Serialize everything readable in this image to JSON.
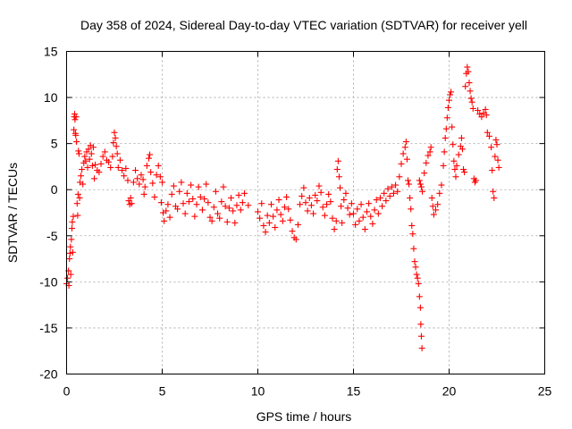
{
  "chart_data": {
    "type": "scatter",
    "title": "Day 358 of 2024, Sidereal Day-to-day VTEC variation (SDTVAR) for receiver yell",
    "xlabel": "GPS time / hours",
    "ylabel": "SDTVAR / TECUs",
    "xlim": [
      0,
      25
    ],
    "ylim": [
      -20,
      15
    ],
    "xticks": [
      0,
      5,
      10,
      15,
      20,
      25
    ],
    "yticks": [
      -20,
      -15,
      -10,
      -5,
      0,
      5,
      10,
      15
    ],
    "xtick_labels": [
      "0",
      "5",
      "10",
      "15",
      "20",
      "25"
    ],
    "ytick_labels": [
      "-20",
      "-15",
      "-10",
      "-5",
      "0",
      "5",
      "10",
      "15"
    ],
    "grid": true,
    "marker": "+",
    "color": "#ff0000",
    "series": [
      {
        "name": "SDTVAR",
        "points": [
          [
            0.0,
            -10.2
          ],
          [
            0.05,
            -9.6
          ],
          [
            0.1,
            -8.8
          ],
          [
            0.12,
            -10.4
          ],
          [
            0.15,
            -7.5
          ],
          [
            0.18,
            -6.9
          ],
          [
            0.2,
            -6.2
          ],
          [
            0.22,
            -9.2
          ],
          [
            0.25,
            -5.4
          ],
          [
            0.28,
            -4.2
          ],
          [
            0.3,
            -3.5
          ],
          [
            0.32,
            -6.8
          ],
          [
            0.35,
            -2.9
          ],
          [
            0.38,
            6.5
          ],
          [
            0.4,
            7.9
          ],
          [
            0.42,
            8.2
          ],
          [
            0.44,
            7.6
          ],
          [
            0.46,
            6.1
          ],
          [
            0.48,
            5.9
          ],
          [
            0.5,
            7.9
          ],
          [
            0.52,
            5.2
          ],
          [
            0.55,
            -1.5
          ],
          [
            0.58,
            -2.8
          ],
          [
            0.6,
            -0.5
          ],
          [
            0.62,
            4.2
          ],
          [
            0.65,
            3.9
          ],
          [
            0.68,
            -0.9
          ],
          [
            0.7,
            0.8
          ],
          [
            0.75,
            1.5
          ],
          [
            0.8,
            2.2
          ],
          [
            0.85,
            0.6
          ],
          [
            0.9,
            2.9
          ],
          [
            0.95,
            3.6
          ],
          [
            1.0,
            3.1
          ],
          [
            1.05,
            4.1
          ],
          [
            1.1,
            2.4
          ],
          [
            1.15,
            4.4
          ],
          [
            1.2,
            3.3
          ],
          [
            1.25,
            4.8
          ],
          [
            1.3,
            3.9
          ],
          [
            1.35,
            2.6
          ],
          [
            1.4,
            4.6
          ],
          [
            1.45,
            1.2
          ],
          [
            1.5,
            2.7
          ],
          [
            1.6,
            2.1
          ],
          [
            1.7,
            1.9
          ],
          [
            1.8,
            2.8
          ],
          [
            1.9,
            3.6
          ],
          [
            2.0,
            4.1
          ],
          [
            2.1,
            3.2
          ],
          [
            2.2,
            3.0
          ],
          [
            2.3,
            2.4
          ],
          [
            2.4,
            3.6
          ],
          [
            2.45,
            5.1
          ],
          [
            2.5,
            6.2
          ],
          [
            2.55,
            5.6
          ],
          [
            2.6,
            4.7
          ],
          [
            2.65,
            3.9
          ],
          [
            2.7,
            2.4
          ],
          [
            2.8,
            3.2
          ],
          [
            2.9,
            2.1
          ],
          [
            3.0,
            1.5
          ],
          [
            3.1,
            2.3
          ],
          [
            3.2,
            1.0
          ],
          [
            3.25,
            -1.2
          ],
          [
            3.3,
            -1.6
          ],
          [
            3.35,
            -0.9
          ],
          [
            3.4,
            -1.5
          ],
          [
            3.5,
            0.8
          ],
          [
            3.6,
            2.1
          ],
          [
            3.7,
            1.2
          ],
          [
            3.8,
            0.6
          ],
          [
            3.9,
            1.6
          ],
          [
            4.0,
            1.1
          ],
          [
            4.05,
            -0.5
          ],
          [
            4.1,
            0.3
          ],
          [
            4.2,
            2.6
          ],
          [
            4.3,
            3.4
          ],
          [
            4.35,
            3.8
          ],
          [
            4.4,
            1.9
          ],
          [
            4.5,
            0.7
          ],
          [
            4.6,
            -0.8
          ],
          [
            4.7,
            1.6
          ],
          [
            4.8,
            2.6
          ],
          [
            4.9,
            1.4
          ],
          [
            4.95,
            -1.4
          ],
          [
            5.0,
            0.8
          ],
          [
            5.05,
            -2.5
          ],
          [
            5.1,
            -3.4
          ],
          [
            5.2,
            -2.3
          ],
          [
            5.3,
            -1.6
          ],
          [
            5.4,
            -3.0
          ],
          [
            5.5,
            -0.5
          ],
          [
            5.6,
            0.4
          ],
          [
            5.7,
            -1.8
          ],
          [
            5.8,
            -2.1
          ],
          [
            5.9,
            -0.2
          ],
          [
            6.0,
            0.8
          ],
          [
            6.1,
            -1.5
          ],
          [
            6.2,
            -2.6
          ],
          [
            6.3,
            -0.4
          ],
          [
            6.4,
            -1.3
          ],
          [
            6.5,
            0.5
          ],
          [
            6.6,
            -1.0
          ],
          [
            6.7,
            -2.9
          ],
          [
            6.8,
            -1.6
          ],
          [
            6.9,
            0.3
          ],
          [
            7.0,
            -0.8
          ],
          [
            7.1,
            -2.2
          ],
          [
            7.2,
            -1.0
          ],
          [
            7.3,
            0.6
          ],
          [
            7.4,
            -1.4
          ],
          [
            7.5,
            -3.0
          ],
          [
            7.6,
            -3.4
          ],
          [
            7.7,
            -1.9
          ],
          [
            7.8,
            -0.2
          ],
          [
            7.9,
            -2.6
          ],
          [
            8.0,
            -3.1
          ],
          [
            8.1,
            -1.3
          ],
          [
            8.2,
            0.3
          ],
          [
            8.3,
            -1.8
          ],
          [
            8.4,
            -3.5
          ],
          [
            8.5,
            -2.0
          ],
          [
            8.6,
            -0.9
          ],
          [
            8.7,
            -2.3
          ],
          [
            8.8,
            -3.6
          ],
          [
            8.9,
            -1.7
          ],
          [
            9.0,
            -0.6
          ],
          [
            9.1,
            -2.2
          ],
          [
            9.2,
            -1.4
          ],
          [
            9.3,
            -0.4
          ],
          [
            9.5,
            -1.7
          ],
          [
            10.0,
            -2.4
          ],
          [
            10.1,
            -3.1
          ],
          [
            10.2,
            -1.5
          ],
          [
            10.3,
            -3.9
          ],
          [
            10.4,
            -4.6
          ],
          [
            10.5,
            -2.8
          ],
          [
            10.6,
            -3.6
          ],
          [
            10.7,
            -1.6
          ],
          [
            10.8,
            -2.9
          ],
          [
            10.9,
            -4.1
          ],
          [
            11.0,
            -2.2
          ],
          [
            11.1,
            -1.1
          ],
          [
            11.2,
            -2.7
          ],
          [
            11.3,
            -3.4
          ],
          [
            11.4,
            -1.9
          ],
          [
            11.5,
            -0.8
          ],
          [
            11.6,
            -2.1
          ],
          [
            11.7,
            -3.3
          ],
          [
            11.8,
            -4.5
          ],
          [
            11.9,
            -5.2
          ],
          [
            12.0,
            -5.4
          ],
          [
            12.1,
            -3.8
          ],
          [
            12.2,
            -1.6
          ],
          [
            12.3,
            -0.7
          ],
          [
            12.4,
            0.2
          ],
          [
            12.5,
            -1.4
          ],
          [
            12.6,
            -2.3
          ],
          [
            12.7,
            -0.9
          ],
          [
            12.8,
            -1.7
          ],
          [
            12.9,
            -2.6
          ],
          [
            13.0,
            -0.6
          ],
          [
            13.1,
            -1.2
          ],
          [
            13.2,
            0.4
          ],
          [
            13.3,
            -0.3
          ],
          [
            13.4,
            -1.9
          ],
          [
            13.5,
            -2.8
          ],
          [
            13.6,
            -1.6
          ],
          [
            13.7,
            -0.5
          ],
          [
            13.8,
            -1.3
          ],
          [
            13.9,
            -3.1
          ],
          [
            14.0,
            -4.3
          ],
          [
            14.1,
            -3.4
          ],
          [
            14.15,
            2.2
          ],
          [
            14.2,
            3.1
          ],
          [
            14.25,
            1.4
          ],
          [
            14.3,
            0.2
          ],
          [
            14.35,
            -1.8
          ],
          [
            14.4,
            -3.6
          ],
          [
            14.5,
            -1.1
          ],
          [
            14.6,
            -0.4
          ],
          [
            14.7,
            -2.0
          ],
          [
            14.8,
            -2.7
          ],
          [
            14.9,
            -1.5
          ],
          [
            15.0,
            -2.6
          ],
          [
            15.1,
            -3.8
          ],
          [
            15.2,
            -2.1
          ],
          [
            15.3,
            -3.4
          ],
          [
            15.4,
            -1.6
          ],
          [
            15.5,
            -3.0
          ],
          [
            15.6,
            -4.3
          ],
          [
            15.7,
            -2.4
          ],
          [
            15.8,
            -1.5
          ],
          [
            15.9,
            -2.9
          ],
          [
            16.0,
            -3.7
          ],
          [
            16.1,
            -2.2
          ],
          [
            16.2,
            -1.1
          ],
          [
            16.3,
            -2.6
          ],
          [
            16.4,
            -0.9
          ],
          [
            16.5,
            -1.8
          ],
          [
            16.6,
            -0.4
          ],
          [
            16.7,
            -1.2
          ],
          [
            16.8,
            0.1
          ],
          [
            16.9,
            -0.7
          ],
          [
            17.0,
            0.3
          ],
          [
            17.1,
            -0.4
          ],
          [
            17.2,
            0.5
          ],
          [
            17.3,
            -0.2
          ],
          [
            17.4,
            1.4
          ],
          [
            17.5,
            2.8
          ],
          [
            17.6,
            3.9
          ],
          [
            17.7,
            4.6
          ],
          [
            17.75,
            5.2
          ],
          [
            17.8,
            3.3
          ],
          [
            17.85,
            1.0
          ],
          [
            17.9,
            0.6
          ],
          [
            17.95,
            -0.9
          ],
          [
            18.0,
            -2.1
          ],
          [
            18.05,
            -3.9
          ],
          [
            18.1,
            -4.8
          ],
          [
            18.15,
            -6.4
          ],
          [
            18.2,
            -7.8
          ],
          [
            18.25,
            -8.4
          ],
          [
            18.3,
            -9.2
          ],
          [
            18.35,
            -9.6
          ],
          [
            18.4,
            -10.2
          ],
          [
            18.45,
            -11.6
          ],
          [
            18.5,
            -12.8
          ],
          [
            18.52,
            -14.6
          ],
          [
            18.55,
            -15.9
          ],
          [
            18.58,
            -17.2
          ],
          [
            18.45,
            1.0
          ],
          [
            18.5,
            0.6
          ],
          [
            18.55,
            0.3
          ],
          [
            18.6,
            -0.2
          ],
          [
            18.7,
            1.8
          ],
          [
            18.8,
            2.9
          ],
          [
            18.9,
            3.7
          ],
          [
            19.0,
            4.1
          ],
          [
            19.05,
            4.6
          ],
          [
            19.1,
            -0.9
          ],
          [
            19.15,
            -1.8
          ],
          [
            19.2,
            -2.7
          ],
          [
            19.3,
            -2.2
          ],
          [
            19.4,
            -1.6
          ],
          [
            19.5,
            -0.4
          ],
          [
            19.6,
            0.5
          ],
          [
            19.7,
            2.6
          ],
          [
            19.75,
            4.1
          ],
          [
            19.8,
            5.6
          ],
          [
            19.85,
            6.6
          ],
          [
            19.9,
            7.8
          ],
          [
            19.95,
            8.9
          ],
          [
            20.0,
            9.7
          ],
          [
            20.05,
            10.3
          ],
          [
            20.1,
            10.6
          ],
          [
            20.15,
            6.8
          ],
          [
            20.2,
            4.9
          ],
          [
            20.25,
            3.1
          ],
          [
            20.3,
            2.2
          ],
          [
            20.35,
            1.4
          ],
          [
            20.4,
            2.6
          ],
          [
            20.5,
            3.8
          ],
          [
            20.6,
            4.7
          ],
          [
            20.65,
            5.6
          ],
          [
            20.7,
            4.4
          ],
          [
            20.75,
            2.2
          ],
          [
            20.8,
            1.9
          ],
          [
            20.85,
            11.2
          ],
          [
            20.9,
            12.6
          ],
          [
            20.95,
            13.3
          ],
          [
            21.0,
            12.8
          ],
          [
            21.05,
            11.6
          ],
          [
            21.1,
            10.7
          ],
          [
            21.15,
            9.9
          ],
          [
            21.2,
            9.5
          ],
          [
            21.25,
            8.8
          ],
          [
            21.3,
            1.2
          ],
          [
            21.35,
            0.8
          ],
          [
            21.4,
            1.0
          ],
          [
            21.5,
            8.6
          ],
          [
            21.6,
            8.2
          ],
          [
            21.7,
            7.9
          ],
          [
            21.8,
            8.3
          ],
          [
            21.9,
            8.7
          ],
          [
            21.95,
            8.1
          ],
          [
            22.0,
            6.2
          ],
          [
            22.1,
            5.8
          ],
          [
            22.2,
            4.6
          ],
          [
            22.25,
            2.1
          ],
          [
            22.3,
            -0.2
          ],
          [
            22.35,
            -0.9
          ],
          [
            22.4,
            3.6
          ],
          [
            22.45,
            5.4
          ],
          [
            22.5,
            4.9
          ],
          [
            22.55,
            3.2
          ],
          [
            22.6,
            2.4
          ]
        ]
      }
    ]
  }
}
